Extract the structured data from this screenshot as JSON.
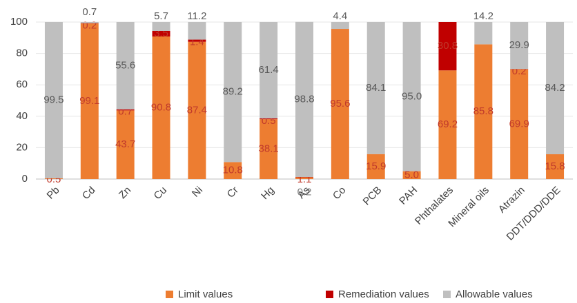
{
  "chart_data": {
    "type": "stacked_bar",
    "categories": [
      "Pb",
      "Cd",
      "Zn",
      "Cu",
      "Ni",
      "Cr",
      "Hg",
      "As",
      "Co",
      "PCB",
      "PAH",
      "Phthalates",
      "Mineral oils",
      "Atrazin",
      "DDT/DDD/DDE"
    ],
    "series": [
      {
        "name": "Limit values",
        "color": "#ed7d31",
        "values": [
          0.5,
          99.1,
          43.7,
          90.8,
          87.4,
          10.8,
          38.1,
          1.1,
          95.6,
          15.9,
          5.0,
          69.2,
          85.8,
          69.9,
          15.8
        ],
        "value_labels": [
          "0.5",
          "99.1",
          "43.7",
          "90.8",
          "87.4",
          "10.8",
          "38.1",
          "1.1",
          "95.6",
          "15.9",
          "5.0",
          "69.2",
          "85.8",
          "69.9",
          "15.8"
        ]
      },
      {
        "name": "Remediation values",
        "color": "#c00000",
        "values": [
          null,
          0.2,
          0.7,
          3.5,
          1.4,
          null,
          0.5,
          0.2,
          null,
          null,
          null,
          30.8,
          null,
          0.2,
          null
        ],
        "value_labels": [
          null,
          "0.2",
          "0.7",
          "3.5",
          "1.4",
          null,
          "0.5",
          "0.2",
          null,
          null,
          null,
          "30.8",
          null,
          "0.2",
          null
        ]
      },
      {
        "name": "Allowable values",
        "color": "#bfbfbf",
        "values": [
          99.5,
          0.7,
          55.6,
          5.7,
          11.2,
          89.2,
          61.4,
          98.8,
          4.4,
          84.1,
          95.0,
          null,
          14.2,
          29.9,
          84.2
        ],
        "value_labels": [
          "99.5",
          "0.7",
          "55.6",
          "5.7",
          "11.2",
          "89.2",
          "61.4",
          "98.8",
          "4.4",
          "84.1",
          "95.0",
          null,
          "14.2",
          "29.9",
          "84.2"
        ]
      }
    ],
    "ylim": [
      0,
      100
    ],
    "yticks": [
      0,
      20,
      40,
      60,
      80,
      100
    ],
    "grid": true,
    "legend": "bottom"
  }
}
